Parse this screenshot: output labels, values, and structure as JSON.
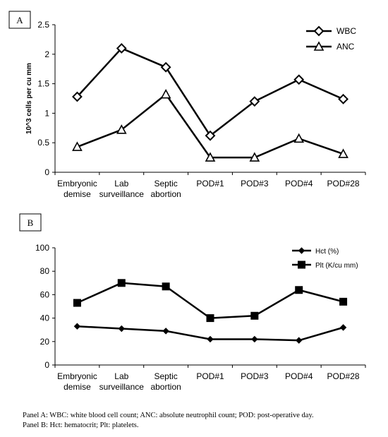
{
  "chart_data": [
    {
      "panel_label": "A",
      "type": "line",
      "categories": [
        [
          "Embryonic",
          "demise"
        ],
        [
          "Lab",
          "surveillance"
        ],
        [
          "Septic",
          "abortion"
        ],
        [
          "POD#1"
        ],
        [
          "POD#3"
        ],
        [
          "POD#4"
        ],
        [
          "POD#28"
        ]
      ],
      "ylabel": "10^3 cells per cu mm",
      "ylim": [
        0,
        2.5
      ],
      "yticks": [
        "0",
        "0.5",
        "1",
        "1.5",
        "2",
        "2.5"
      ],
      "grid": false,
      "legend": "top-right",
      "series": [
        {
          "name": "WBC",
          "marker": "diamond",
          "values": [
            1.28,
            2.1,
            1.78,
            0.62,
            1.2,
            1.57,
            1.24
          ]
        },
        {
          "name": "ANC",
          "marker": "triangle",
          "values": [
            0.43,
            0.72,
            1.32,
            0.25,
            0.25,
            0.57,
            0.31
          ]
        }
      ]
    },
    {
      "panel_label": "B",
      "type": "line",
      "categories": [
        [
          "Embryonic",
          "demise"
        ],
        [
          "Lab",
          "surveillance"
        ],
        [
          "Septic",
          "abortion"
        ],
        [
          "POD#1"
        ],
        [
          "POD#3"
        ],
        [
          "POD#4"
        ],
        [
          "POD#28"
        ]
      ],
      "ylabel": "",
      "ylim": [
        0,
        100
      ],
      "yticks": [
        "0",
        "20",
        "40",
        "60",
        "80",
        "100"
      ],
      "grid": false,
      "legend": "top-right",
      "series": [
        {
          "name": "Hct (%)",
          "marker": "small-diamond",
          "values": [
            33,
            31,
            29,
            22,
            22,
            21,
            32
          ]
        },
        {
          "name": "Plt (K/cu mm)",
          "marker": "square",
          "values": [
            53,
            70,
            67,
            40,
            42,
            64,
            54
          ]
        }
      ]
    }
  ],
  "caption": {
    "line1": "Panel A: WBC: white blood cell count; ANC: absolute neutrophil count; POD: post-operative day.",
    "line2": "Panel B: Hct: hematocrit; Plt: platelets."
  }
}
